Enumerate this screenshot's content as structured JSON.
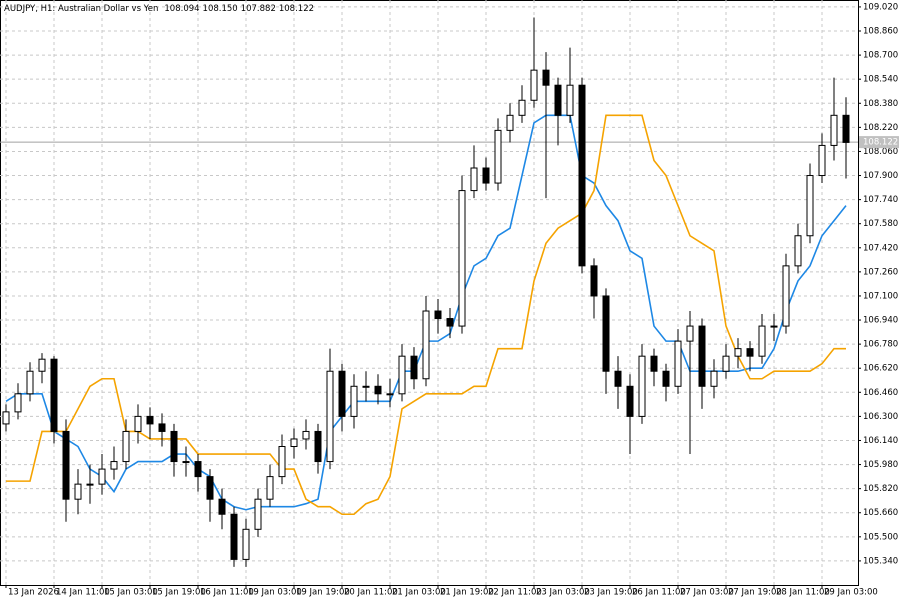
{
  "chart_data": {
    "type": "candlestick",
    "title": "AUDJPY, H1: Australian Dollar vs Yen",
    "quote": [
      "108.094",
      "108.150",
      "107.882",
      "108.122"
    ],
    "last_price": {
      "value": 108.122,
      "label": "108.122"
    },
    "up_color": "#ffffff",
    "down_color": "#000000",
    "wick_color": "#000000",
    "grid": true,
    "ylim": [
      105.18,
      109.066
    ],
    "xlim": [
      -0.5,
      71
    ],
    "yticks": [
      {
        "value": 109.02,
        "label": "109.020"
      },
      {
        "value": 108.86,
        "label": "108.860"
      },
      {
        "value": 108.7,
        "label": "108.700"
      },
      {
        "value": 108.54,
        "label": "108.540"
      },
      {
        "value": 108.38,
        "label": "108.380"
      },
      {
        "value": 108.22,
        "label": "108.220"
      },
      {
        "value": 108.06,
        "label": "108.060"
      },
      {
        "value": 107.9,
        "label": "107.900"
      },
      {
        "value": 107.74,
        "label": "107.740"
      },
      {
        "value": 107.58,
        "label": "107.580"
      },
      {
        "value": 107.42,
        "label": "107.420"
      },
      {
        "value": 107.26,
        "label": "107.260"
      },
      {
        "value": 107.1,
        "label": "107.100"
      },
      {
        "value": 106.94,
        "label": "106.940"
      },
      {
        "value": 106.78,
        "label": "106.780"
      },
      {
        "value": 106.62,
        "label": "106.620"
      },
      {
        "value": 106.46,
        "label": "106.460"
      },
      {
        "value": 106.3,
        "label": "106.300"
      },
      {
        "value": 106.14,
        "label": "106.140"
      },
      {
        "value": 105.98,
        "label": "105.980"
      },
      {
        "value": 105.82,
        "label": "105.820"
      },
      {
        "value": 105.66,
        "label": "105.660"
      },
      {
        "value": 105.5,
        "label": "105.500"
      },
      {
        "value": 105.34,
        "label": "105.340"
      }
    ],
    "xticks": [
      {
        "value": 0,
        "label": "13 Jan 2026"
      },
      {
        "value": 4,
        "label": "14 Jan 11:00"
      },
      {
        "value": 8,
        "label": "15 Jan 03:00"
      },
      {
        "value": 12,
        "label": "15 Jan 19:00"
      },
      {
        "value": 16,
        "label": "16 Jan 11:00"
      },
      {
        "value": 20,
        "label": "19 Jan 03:00"
      },
      {
        "value": 24,
        "label": "19 Jan 19:00"
      },
      {
        "value": 28,
        "label": "20 Jan 11:00"
      },
      {
        "value": 32,
        "label": "21 Jan 03:00"
      },
      {
        "value": 36,
        "label": "21 Jan 19:00"
      },
      {
        "value": 40,
        "label": "22 Jan 11:00"
      },
      {
        "value": 44,
        "label": "23 Jan 03:00"
      },
      {
        "value": 48,
        "label": "23 Jan 19:00"
      },
      {
        "value": 52,
        "label": "26 Jan 11:00"
      },
      {
        "value": 56,
        "label": "27 Jan 03:00"
      },
      {
        "value": 60,
        "label": "27 Jan 19:00"
      },
      {
        "value": 64,
        "label": "28 Jan 11:00"
      },
      {
        "value": 68,
        "label": "29 Jan 03:00"
      }
    ],
    "candles": [
      [
        106.25,
        106.38,
        106.2,
        106.33
      ],
      [
        106.33,
        106.52,
        106.28,
        106.45
      ],
      [
        106.45,
        106.66,
        106.4,
        106.6
      ],
      [
        106.6,
        106.72,
        106.52,
        106.68
      ],
      [
        106.68,
        106.7,
        106.12,
        106.2
      ],
      [
        106.2,
        106.28,
        105.6,
        105.75
      ],
      [
        105.75,
        105.95,
        105.65,
        105.85
      ],
      [
        105.85,
        105.98,
        105.72,
        105.85
      ],
      [
        105.85,
        106.05,
        105.78,
        105.95
      ],
      [
        105.95,
        106.1,
        105.88,
        106.0
      ],
      [
        106.0,
        106.28,
        105.95,
        106.2
      ],
      [
        106.2,
        106.38,
        106.12,
        106.3
      ],
      [
        106.3,
        106.36,
        106.15,
        106.25
      ],
      [
        106.25,
        106.32,
        106.1,
        106.2
      ],
      [
        106.2,
        106.25,
        105.9,
        106.0
      ],
      [
        106.0,
        106.1,
        105.9,
        106.0
      ],
      [
        106.0,
        106.05,
        105.8,
        105.9
      ],
      [
        105.9,
        105.95,
        105.6,
        105.75
      ],
      [
        105.75,
        105.82,
        105.55,
        105.65
      ],
      [
        105.65,
        105.7,
        105.3,
        105.35
      ],
      [
        105.35,
        105.62,
        105.3,
        105.55
      ],
      [
        105.55,
        105.82,
        105.5,
        105.75
      ],
      [
        105.75,
        105.98,
        105.7,
        105.9
      ],
      [
        105.9,
        106.18,
        105.85,
        106.1
      ],
      [
        106.1,
        106.22,
        106.02,
        106.15
      ],
      [
        106.15,
        106.28,
        106.08,
        106.2
      ],
      [
        106.2,
        106.25,
        105.92,
        106.0
      ],
      [
        106.0,
        106.75,
        105.95,
        106.6
      ],
      [
        106.6,
        106.65,
        106.2,
        106.3
      ],
      [
        106.3,
        106.58,
        106.22,
        106.5
      ],
      [
        106.5,
        106.6,
        106.4,
        106.5
      ],
      [
        106.5,
        106.58,
        106.38,
        106.45
      ],
      [
        106.45,
        106.55,
        106.36,
        106.45
      ],
      [
        106.45,
        106.78,
        106.4,
        106.7
      ],
      [
        106.7,
        106.76,
        106.48,
        106.55
      ],
      [
        106.55,
        107.1,
        106.5,
        107.0
      ],
      [
        107.0,
        107.08,
        106.85,
        106.95
      ],
      [
        106.95,
        107.02,
        106.82,
        106.9
      ],
      [
        106.9,
        107.9,
        106.85,
        107.8
      ],
      [
        107.8,
        108.1,
        107.75,
        107.95
      ],
      [
        107.95,
        108.02,
        107.8,
        107.85
      ],
      [
        107.85,
        108.28,
        107.8,
        108.2
      ],
      [
        108.2,
        108.38,
        108.12,
        108.3
      ],
      [
        108.3,
        108.5,
        108.25,
        108.4
      ],
      [
        108.4,
        108.95,
        108.35,
        108.6
      ],
      [
        108.6,
        108.72,
        107.75,
        108.5
      ],
      [
        108.5,
        108.55,
        108.1,
        108.3
      ],
      [
        108.3,
        108.75,
        108.25,
        108.5
      ],
      [
        108.5,
        108.55,
        107.25,
        107.3
      ],
      [
        107.3,
        107.35,
        106.95,
        107.1
      ],
      [
        107.1,
        107.15,
        106.45,
        106.6
      ],
      [
        106.6,
        106.7,
        106.35,
        106.5
      ],
      [
        106.5,
        106.58,
        106.05,
        106.3
      ],
      [
        106.3,
        106.78,
        106.25,
        106.7
      ],
      [
        106.7,
        106.75,
        106.5,
        106.6
      ],
      [
        106.6,
        106.65,
        106.4,
        106.5
      ],
      [
        106.5,
        106.88,
        106.45,
        106.8
      ],
      [
        106.8,
        107.0,
        106.05,
        106.9
      ],
      [
        106.9,
        106.95,
        106.35,
        106.5
      ],
      [
        106.5,
        106.68,
        106.42,
        106.6
      ],
      [
        106.6,
        106.78,
        106.55,
        106.7
      ],
      [
        106.7,
        106.82,
        106.62,
        106.75
      ],
      [
        106.75,
        106.8,
        106.6,
        106.7
      ],
      [
        106.7,
        106.98,
        106.65,
        106.9
      ],
      [
        106.9,
        106.98,
        106.8,
        106.9
      ],
      [
        106.9,
        107.38,
        106.85,
        107.3
      ],
      [
        107.3,
        107.58,
        107.25,
        107.5
      ],
      [
        107.5,
        107.98,
        107.45,
        107.9
      ],
      [
        107.9,
        108.18,
        107.85,
        108.1
      ],
      [
        108.1,
        108.55,
        108.0,
        108.3
      ],
      [
        108.3,
        108.42,
        107.88,
        108.12
      ]
    ],
    "series": [
      {
        "color": "#1e88e5",
        "values": [
          106.4,
          106.45,
          106.45,
          106.45,
          106.2,
          106.15,
          106.1,
          105.95,
          105.9,
          105.8,
          105.95,
          106.0,
          106.0,
          106.0,
          106.05,
          106.05,
          105.95,
          105.9,
          105.75,
          105.7,
          105.68,
          105.7,
          105.7,
          105.7,
          105.7,
          105.72,
          105.75,
          106.2,
          106.3,
          106.4,
          106.4,
          106.4,
          106.4,
          106.6,
          106.6,
          106.8,
          106.8,
          106.85,
          107.1,
          107.3,
          107.35,
          107.5,
          107.55,
          107.9,
          108.25,
          108.3,
          108.3,
          108.3,
          107.9,
          107.85,
          107.7,
          107.6,
          107.4,
          107.35,
          106.9,
          106.8,
          106.8,
          106.6,
          106.6,
          106.6,
          106.6,
          106.6,
          106.62,
          106.62,
          106.75,
          107.0,
          107.2,
          107.3,
          107.5,
          107.6,
          107.7
        ]
      },
      {
        "color": "#f5a300",
        "values": [
          105.87,
          105.87,
          105.87,
          106.2,
          106.2,
          106.2,
          106.35,
          106.5,
          106.55,
          106.55,
          106.2,
          106.2,
          106.15,
          106.15,
          106.15,
          106.15,
          106.05,
          106.05,
          106.05,
          106.05,
          106.05,
          106.05,
          106.05,
          105.95,
          105.95,
          105.75,
          105.7,
          105.7,
          105.65,
          105.65,
          105.72,
          105.75,
          105.9,
          106.35,
          106.4,
          106.45,
          106.45,
          106.45,
          106.45,
          106.5,
          106.5,
          106.75,
          106.75,
          106.75,
          107.2,
          107.45,
          107.55,
          107.6,
          107.65,
          107.8,
          108.3,
          108.3,
          108.3,
          108.3,
          108.0,
          107.9,
          107.7,
          107.5,
          107.45,
          107.4,
          106.9,
          106.7,
          106.55,
          106.55,
          106.6,
          106.6,
          106.6,
          106.6,
          106.65,
          106.75,
          106.75
        ]
      }
    ]
  }
}
